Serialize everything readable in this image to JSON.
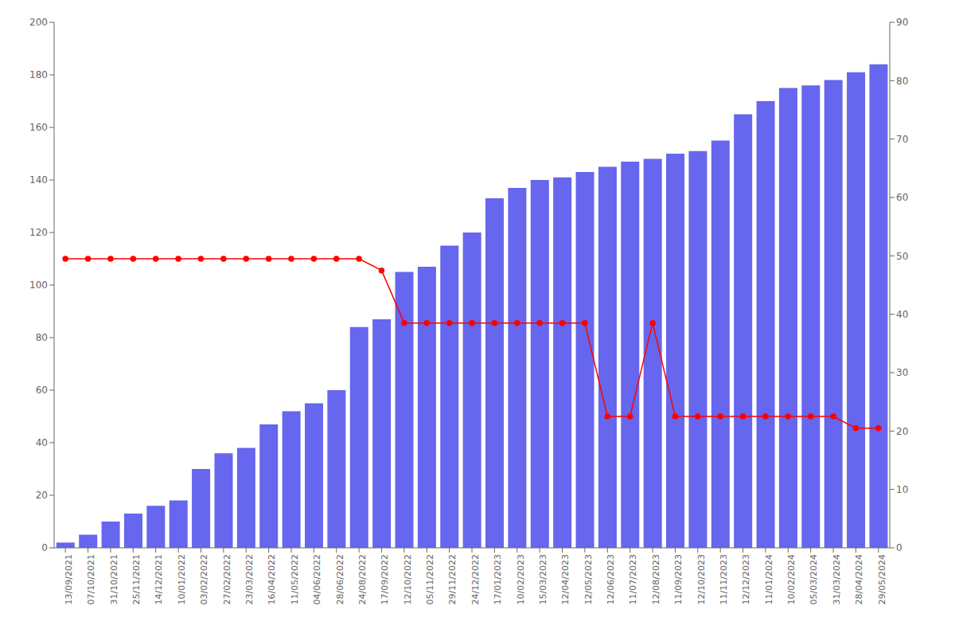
{
  "chart_data": {
    "type": "bar",
    "categories": [
      "13/09/2021",
      "07/10/2021",
      "31/10/2021",
      "25/11/2021",
      "14/12/2021",
      "10/01/2022",
      "03/02/2022",
      "27/02/2022",
      "23/03/2022",
      "16/04/2022",
      "11/05/2022",
      "04/06/2022",
      "28/06/2022",
      "24/08/2022",
      "17/09/2022",
      "12/10/2022",
      "05/11/2022",
      "29/11/2022",
      "24/12/2022",
      "17/01/2023",
      "10/02/2023",
      "15/03/2023",
      "12/04/2023",
      "12/05/2023",
      "12/06/2023",
      "11/07/2023",
      "12/08/2023",
      "11/09/2023",
      "12/10/2023",
      "11/11/2023",
      "12/12/2023",
      "11/01/2024",
      "10/02/2024",
      "05/03/2024",
      "31/03/2024",
      "28/04/2024",
      "29/05/2024"
    ],
    "series": [
      {
        "type": "bar",
        "color": "#6666ee",
        "values": [
          2,
          5,
          10,
          13,
          16,
          18,
          30,
          36,
          38,
          47,
          52,
          55,
          60,
          84,
          87,
          105,
          107,
          115,
          120,
          133,
          137,
          140,
          141,
          143,
          145,
          147,
          148,
          150,
          151,
          155,
          165,
          170,
          175,
          176,
          178,
          181,
          184
        ]
      },
      {
        "type": "line",
        "color": "#ff0000",
        "marker": "circle",
        "axis": "y2",
        "values": [
          49.5,
          49.5,
          49.5,
          49.5,
          49.5,
          49.5,
          49.5,
          49.5,
          49.5,
          49.5,
          49.5,
          49.5,
          49.5,
          49.5,
          47.5,
          38.5,
          38.5,
          38.5,
          38.5,
          38.5,
          38.5,
          38.5,
          38.5,
          38.5,
          22.5,
          22.5,
          38.5,
          22.5,
          22.5,
          22.5,
          22.5,
          22.5,
          22.5,
          22.5,
          22.5,
          20.5,
          20.5
        ]
      }
    ],
    "ylim": [
      0,
      200
    ],
    "yticks": [
      0,
      20,
      40,
      60,
      80,
      100,
      120,
      140,
      160,
      180,
      200
    ],
    "y2lim": [
      0,
      90
    ],
    "y2ticks": [
      0,
      10,
      20,
      30,
      40,
      50,
      60,
      70,
      80,
      90
    ],
    "grid": false
  }
}
